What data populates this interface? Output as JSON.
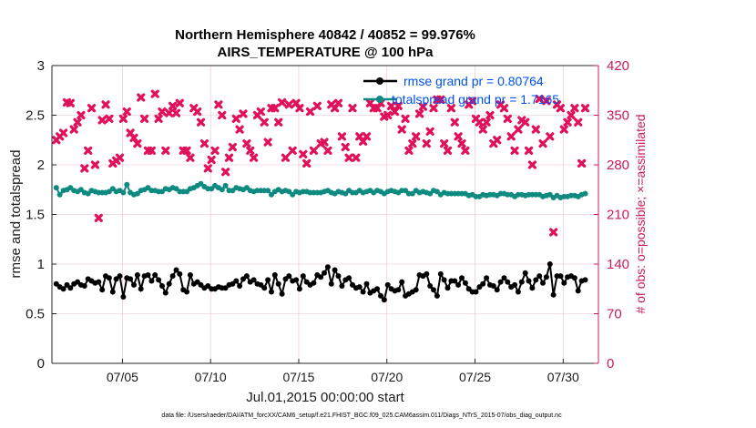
{
  "chart_data": {
    "type": "line",
    "title_line1": "Northern Hemisphere 40842 / 40852 = 99.976%",
    "title_line2": "AIRS_TEMPERATURE @ 100 hPa",
    "xlabel": "Jul.01,2015 00:00:00 start",
    "ylabel_left": "rmse and totalspread",
    "ylabel_right": "# of obs: o=possible; ×=assimilated",
    "ylim_left": [
      0,
      3
    ],
    "ylim_right": [
      0,
      420
    ],
    "xlim": [
      1,
      32
    ],
    "yticks_left": [
      "0",
      "0.5",
      "1",
      "1.5",
      "2",
      "2.5",
      "3"
    ],
    "yticks_right": [
      "0",
      "70",
      "140",
      "210",
      "280",
      "350",
      "420"
    ],
    "xticks": [
      {
        "day": 5,
        "label": "07/05"
      },
      {
        "day": 10,
        "label": "07/10"
      },
      {
        "day": 15,
        "label": "07/15"
      },
      {
        "day": 20,
        "label": "07/20"
      },
      {
        "day": 25,
        "label": "07/25"
      },
      {
        "day": 30,
        "label": "07/30"
      }
    ],
    "grid": true,
    "legend_placement": "top-right",
    "colors": {
      "rmse": "#000000",
      "spread": "#0f8a80",
      "obs": "#e0105a",
      "right_axis": "#cc1a5e",
      "legend_text": "#0050f0",
      "grid": "#e8c0cc"
    },
    "series": [
      {
        "name": "rmse grand pr = 0.80764",
        "axis": "left",
        "values": [
          0.8,
          0.77,
          0.75,
          0.79,
          0.76,
          0.8,
          0.82,
          0.79,
          0.78,
          0.85,
          0.83,
          0.81,
          0.82,
          0.74,
          0.88,
          0.86,
          0.72,
          0.85,
          0.88,
          0.67,
          0.86,
          0.85,
          0.79,
          0.89,
          0.75,
          0.88,
          0.89,
          0.83,
          0.89,
          0.84,
          0.78,
          0.71,
          0.8,
          0.88,
          0.94,
          0.9,
          0.74,
          0.72,
          0.89,
          0.8,
          0.82,
          0.79,
          0.76,
          0.78,
          0.75,
          0.75,
          0.77,
          0.76,
          0.76,
          0.79,
          0.8,
          0.83,
          0.78,
          0.85,
          0.88,
          0.82,
          0.84,
          0.8,
          0.79,
          0.76,
          0.84,
          0.72,
          0.89,
          0.8,
          0.7,
          0.85,
          0.88,
          0.83,
          0.84,
          0.75,
          0.88,
          0.82,
          0.79,
          0.81,
          0.89,
          0.87,
          0.91,
          0.97,
          0.8,
          0.94,
          0.88,
          0.78,
          0.84,
          0.86,
          0.79,
          0.76,
          0.77,
          0.72,
          0.8,
          0.71,
          0.73,
          0.75,
          0.68,
          0.64,
          0.79,
          0.75,
          0.73,
          0.74,
          0.82,
          0.68,
          0.7,
          0.72,
          0.74,
          0.89,
          0.88,
          0.9,
          0.78,
          0.74,
          0.68,
          0.9,
          0.84,
          0.76,
          0.83,
          0.83,
          0.79,
          0.86,
          0.81,
          0.75,
          0.72,
          0.72,
          0.77,
          0.8,
          0.86,
          0.79,
          0.78,
          0.74,
          0.82,
          0.86,
          0.82,
          0.77,
          0.79,
          0.72,
          0.82,
          0.91,
          0.83,
          0.76,
          0.84,
          0.88,
          0.81,
          0.87,
          1.0,
          0.69,
          0.88,
          0.88,
          0.81,
          0.87,
          0.88,
          0.86,
          0.73,
          0.83,
          0.84
        ]
      },
      {
        "name": "totalspread grand pr = 1.7165",
        "axis": "left",
        "values": [
          1.77,
          1.7,
          1.74,
          1.75,
          1.77,
          1.74,
          1.73,
          1.75,
          1.72,
          1.71,
          1.74,
          1.73,
          1.72,
          1.72,
          1.72,
          1.73,
          1.76,
          1.73,
          1.74,
          1.72,
          1.8,
          1.72,
          1.7,
          1.71,
          1.74,
          1.75,
          1.77,
          1.74,
          1.74,
          1.73,
          1.73,
          1.76,
          1.75,
          1.77,
          1.76,
          1.73,
          1.73,
          1.73,
          1.76,
          1.77,
          1.79,
          1.81,
          1.78,
          1.76,
          1.76,
          1.79,
          1.77,
          1.75,
          1.79,
          1.74,
          1.74,
          1.77,
          1.76,
          1.75,
          1.77,
          1.74,
          1.73,
          1.74,
          1.74,
          1.74,
          1.74,
          1.7,
          1.73,
          1.75,
          1.73,
          1.74,
          1.73,
          1.7,
          1.73,
          1.72,
          1.73,
          1.73,
          1.72,
          1.72,
          1.72,
          1.72,
          1.73,
          1.74,
          1.72,
          1.71,
          1.73,
          1.72,
          1.71,
          1.74,
          1.72,
          1.72,
          1.74,
          1.72,
          1.73,
          1.74,
          1.72,
          1.74,
          1.73,
          1.71,
          1.73,
          1.74,
          1.73,
          1.72,
          1.74,
          1.74,
          1.71,
          1.71,
          1.74,
          1.72,
          1.73,
          1.72,
          1.71,
          1.74,
          1.73,
          1.7,
          1.72,
          1.71,
          1.71,
          1.71,
          1.71,
          1.71,
          1.71,
          1.69,
          1.7,
          1.68,
          1.68,
          1.7,
          1.69,
          1.7,
          1.7,
          1.69,
          1.71,
          1.71,
          1.7,
          1.7,
          1.68,
          1.7,
          1.7,
          1.69,
          1.7,
          1.7,
          1.7,
          1.7,
          1.68,
          1.69,
          1.7,
          1.67,
          1.69,
          1.67,
          1.68,
          1.68,
          1.69,
          1.69,
          1.68,
          1.7,
          1.71
        ]
      },
      {
        "name": "# of obs assimilated",
        "axis": "right",
        "values": [
          315,
          320,
          325,
          368,
          367,
          330,
          340,
          350,
          275,
          300,
          360,
          280,
          205,
          343,
          365,
          345,
          282,
          286,
          290,
          345,
          355,
          325,
          318,
          310,
          375,
          345,
          300,
          300,
          380,
          345,
          355,
          300,
          353,
          363,
          353,
          367,
          300,
          300,
          290,
          360,
          355,
          340,
          310,
          275,
          287,
          300,
          365,
          350,
          270,
          290,
          305,
          345,
          330,
          352,
          310,
          300,
          290,
          350,
          355,
          340,
          312,
          360,
          360,
          340,
          368,
          290,
          365,
          300,
          367,
          360,
          295,
          282,
          355,
          300,
          363,
          310,
          312,
          300,
          365,
          360,
          367,
          320,
          305,
          290,
          360,
          290,
          320,
          313,
          320,
          367,
          360,
          360,
          367,
          348,
          350,
          363,
          355,
          363,
          330,
          345,
          300,
          310,
          320,
          352,
          362,
          310,
          327,
          360,
          372,
          372,
          310,
          300,
          360,
          340,
          320,
          310,
          300,
          365,
          370,
          345,
          340,
          330,
          340,
          350,
          310,
          315,
          365,
          360,
          345,
          320,
          300,
          330,
          343,
          340,
          300,
          280,
          330,
          373,
          310,
          370,
          320,
          185,
          365,
          360,
          330,
          340,
          350,
          360,
          340,
          282,
          360
        ]
      }
    ]
  },
  "footer": "data file: /Users/raeder/DAI/ATM_forcXX/CAM6_setup/f.e21.FHIST_BGC.f09_025.CAM6assim.011/Diags_NTrS_2015-07/obs_diag_output.nc"
}
